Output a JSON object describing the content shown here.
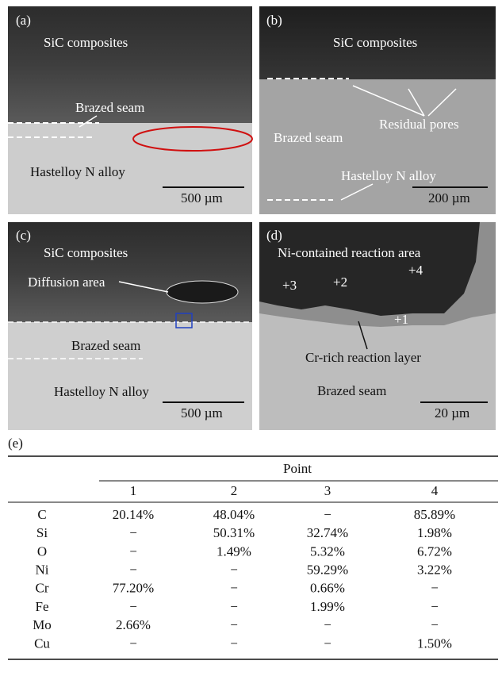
{
  "panels": [
    {
      "label": "(a)",
      "texts": [
        "SiC composites",
        "Brazed seam",
        "Hastelloy N alloy"
      ],
      "scale": "500 µm"
    },
    {
      "label": "(b)",
      "texts": [
        "SiC composites",
        "Residual pores",
        "Brazed seam",
        "Hastelloy N alloy"
      ],
      "scale": "200 µm"
    },
    {
      "label": "(c)",
      "texts": [
        "SiC composites",
        "Diffusion area",
        "Brazed seam",
        "Hastelloy N alloy"
      ],
      "scale": "500 µm"
    },
    {
      "label": "(d)",
      "texts": [
        "Ni-contained reaction area",
        "+3",
        "+2",
        "+4",
        "+1",
        "Cr-rich reaction layer",
        "Brazed seam"
      ],
      "scale": "20 µm"
    }
  ],
  "table": {
    "label": "(e)",
    "group_header": "Point",
    "columns": [
      "1",
      "2",
      "3",
      "4"
    ],
    "rows": [
      [
        "C",
        "20.14%",
        "48.04%",
        "−",
        "85.89%"
      ],
      [
        "Si",
        "−",
        "50.31%",
        "32.74%",
        "1.98%"
      ],
      [
        "O",
        "−",
        "1.49%",
        "5.32%",
        "6.72%"
      ],
      [
        "Ni",
        "−",
        "−",
        "59.29%",
        "3.22%"
      ],
      [
        "Cr",
        "77.20%",
        "−",
        "0.66%",
        "−"
      ],
      [
        "Fe",
        "−",
        "−",
        "1.99%",
        "−"
      ],
      [
        "Mo",
        "2.66%",
        "−",
        "−",
        "−"
      ],
      [
        "Cu",
        "−",
        "−",
        "−",
        "1.50%"
      ]
    ]
  }
}
